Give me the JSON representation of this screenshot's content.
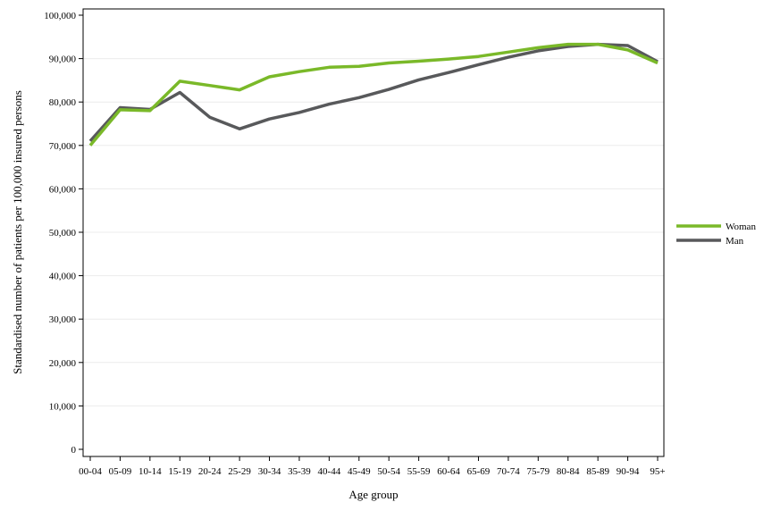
{
  "chart_data": {
    "type": "line",
    "title": "",
    "xlabel": "Age group",
    "ylabel": "Standardised number of patients per 100,000 insured persons",
    "ylim": [
      0,
      100000
    ],
    "yticks": [
      0,
      10000,
      20000,
      30000,
      40000,
      50000,
      60000,
      70000,
      80000,
      90000,
      100000
    ],
    "ytick_labels": [
      "0",
      "10,000",
      "20,000",
      "30,000",
      "40,000",
      "50,000",
      "60,000",
      "70,000",
      "80,000",
      "90,000",
      "100,000"
    ],
    "grid": true,
    "legend_position": "right",
    "categories": [
      "00-04",
      "05-09",
      "10-14",
      "15-19",
      "20-24",
      "25-29",
      "30-34",
      "35-39",
      "40-44",
      "45-49",
      "50-54",
      "55-59",
      "60-64",
      "65-69",
      "70-74",
      "75-79",
      "80-84",
      "85-89",
      "90-94",
      "95+"
    ],
    "series": [
      {
        "name": "Woman",
        "color": "#7ab929",
        "values": [
          70000,
          78200,
          78000,
          84800,
          83800,
          82800,
          85800,
          87000,
          88000,
          88200,
          89000,
          89400,
          89900,
          90500,
          91500,
          92500,
          93300,
          93300,
          92000,
          89000
        ]
      },
      {
        "name": "Man",
        "color": "#58595b",
        "values": [
          71000,
          78700,
          78300,
          82200,
          76500,
          73800,
          76100,
          77600,
          79500,
          81000,
          82900,
          85100,
          86800,
          88600,
          90300,
          91800,
          92800,
          93300,
          93000,
          89300
        ]
      }
    ]
  }
}
